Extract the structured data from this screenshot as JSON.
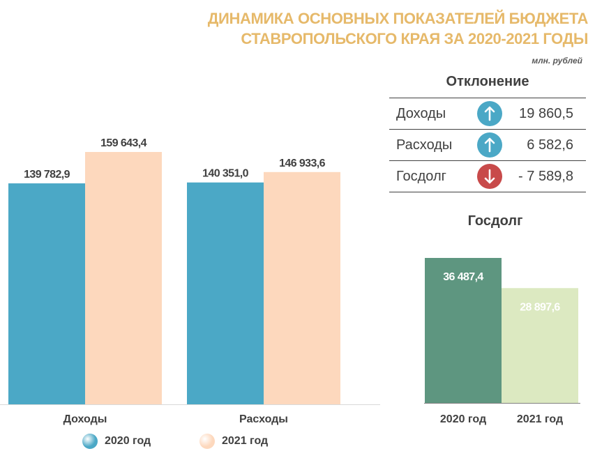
{
  "title_line1": "ДИНАМИКА ОСНОВНЫХ ПОКАЗАТЕЛЕЙ БЮДЖЕТА",
  "title_line2": "СТАВРОПОЛЬСКОГО КРАЯ ЗА 2020-2021 ГОДЫ",
  "units": "млн. рублей",
  "colors": {
    "title": "#E6B96A",
    "bar_2020": "#4BA8C6",
    "bar_2021": "#FDD8BD",
    "debt_2020": "#5E9680",
    "debt_2021": "#DCE9C1",
    "arrow_up": "#4BA8C6",
    "arrow_down": "#C84A4A"
  },
  "legend": [
    {
      "label": "2020 год",
      "color": "#4BA8C6"
    },
    {
      "label": "2021 год",
      "color": "#FDD8BD"
    }
  ],
  "deviation": {
    "title": "Отклонение",
    "rows": [
      {
        "label": "Доходы",
        "direction": "up",
        "icon": "arrow-up-icon",
        "value": "19 860,5"
      },
      {
        "label": "Расходы",
        "direction": "up",
        "icon": "arrow-up-icon",
        "value": "6 582,6"
      },
      {
        "label": "Госдолг",
        "direction": "down",
        "icon": "arrow-down-icon",
        "value": "- 7 589,8"
      }
    ]
  },
  "chart_data": [
    {
      "type": "bar",
      "categories": [
        "Доходы",
        "Расходы"
      ],
      "series": [
        {
          "name": "2020 год",
          "values": [
            139782.9,
            140351.0
          ],
          "labels": [
            "139 782,9",
            "140 351,0"
          ]
        },
        {
          "name": "2021 год",
          "values": [
            159643.4,
            146933.6
          ],
          "labels": [
            "159 643,4",
            "146 933,6"
          ]
        }
      ],
      "ylim": [
        0,
        180000
      ],
      "grid": false,
      "legend": "bottom"
    },
    {
      "type": "bar",
      "title": "Госдолг",
      "categories": [
        "2020 год",
        "2021 год"
      ],
      "values": [
        36487.4,
        28897.6
      ],
      "labels": [
        "36 487,4",
        "28 897,6"
      ],
      "ylim": [
        0,
        38000
      ],
      "grid": false
    }
  ]
}
